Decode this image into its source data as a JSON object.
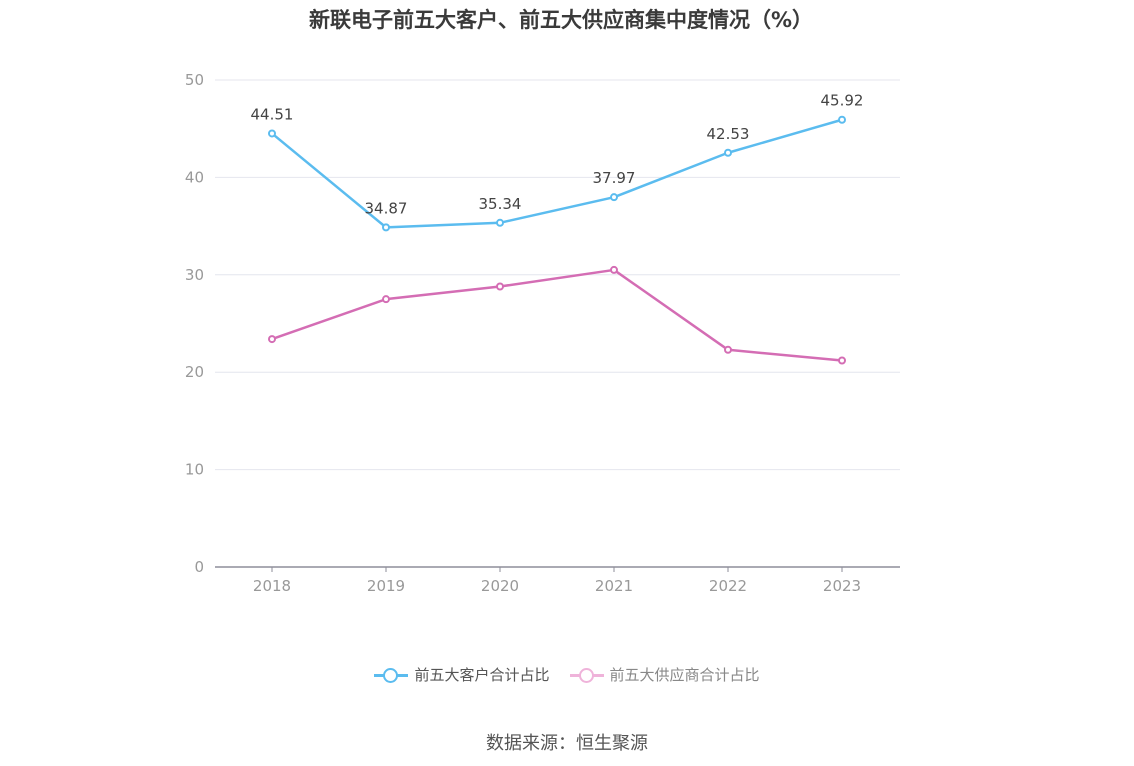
{
  "chart_data": {
    "type": "line",
    "title": "新联电子前五大客户、前五大供应商集中度情况（%）",
    "categories": [
      "2018",
      "2019",
      "2020",
      "2021",
      "2022",
      "2023"
    ],
    "ylim": [
      0,
      50
    ],
    "yticks": [
      0,
      10,
      20,
      30,
      40,
      50
    ],
    "grid": true,
    "legend_position": "bottom",
    "series": [
      {
        "name": "前五大客户合计占比",
        "values": [
          44.51,
          34.87,
          35.34,
          37.97,
          42.53,
          45.92
        ],
        "color": "#5bbcef",
        "labels": [
          "44.51",
          "34.87",
          "35.34",
          "37.97",
          "42.53",
          "45.92"
        ]
      },
      {
        "name": "前五大供应商合计占比",
        "values": [
          23.4,
          27.5,
          28.8,
          30.5,
          22.3,
          21.2
        ],
        "color": "#d46db4"
      }
    ]
  },
  "legend": {
    "customers_label": "前五大客户合计占比",
    "suppliers_label": "前五大供应商合计占比",
    "suppliers_swatch_color": "#efb3da"
  },
  "source": "数据来源：恒生聚源"
}
